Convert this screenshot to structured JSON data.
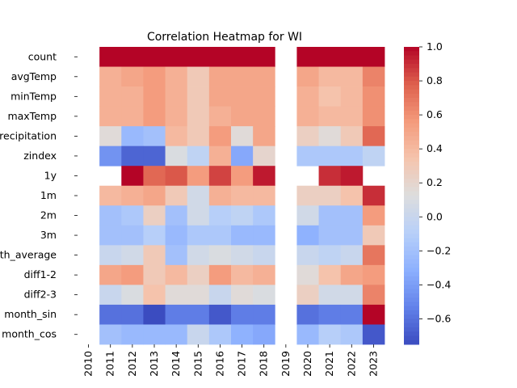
{
  "chart_data": {
    "type": "heatmap",
    "title": "Correlation Heatmap for WI",
    "xlabel": "",
    "ylabel": "",
    "x_labels": [
      "2010",
      "2011",
      "2012",
      "2013",
      "2014",
      "2015",
      "2016",
      "2017",
      "2018",
      "2019",
      "2020",
      "2021",
      "2022",
      "2023"
    ],
    "y_labels": [
      "count",
      "avgTemp",
      "minTemp",
      "maxTemp",
      "precipitation",
      "zindex",
      "1y",
      "1m",
      "2m",
      "3m",
      "month_average",
      "diff1-2",
      "diff2-3",
      "month_sin",
      "month_cos"
    ],
    "values": [
      [
        null,
        1.0,
        1.0,
        1.0,
        1.0,
        1.0,
        1.0,
        1.0,
        1.0,
        null,
        1.0,
        1.0,
        1.0,
        1.0
      ],
      [
        null,
        0.45,
        0.5,
        0.55,
        0.45,
        0.3,
        0.5,
        0.5,
        0.5,
        null,
        0.5,
        0.4,
        0.4,
        0.65
      ],
      [
        null,
        0.45,
        0.45,
        0.55,
        0.45,
        0.3,
        0.5,
        0.5,
        0.5,
        null,
        0.45,
        0.35,
        0.4,
        0.6
      ],
      [
        null,
        0.45,
        0.45,
        0.55,
        0.45,
        0.3,
        0.45,
        0.5,
        0.5,
        null,
        0.45,
        0.4,
        0.4,
        0.6
      ],
      [
        null,
        0.15,
        -0.25,
        -0.2,
        0.4,
        0.3,
        0.55,
        0.15,
        0.5,
        null,
        0.25,
        0.15,
        0.3,
        0.75
      ],
      [
        null,
        -0.45,
        -0.65,
        -0.65,
        0.1,
        -0.05,
        0.45,
        -0.35,
        0.2,
        null,
        -0.15,
        -0.15,
        -0.15,
        -0.05
      ],
      [
        null,
        null,
        1.0,
        0.75,
        0.8,
        0.55,
        0.85,
        0.55,
        0.95,
        null,
        null,
        0.9,
        0.95,
        null
      ],
      [
        null,
        0.4,
        0.45,
        0.5,
        0.3,
        0.05,
        0.45,
        0.4,
        0.4,
        null,
        0.25,
        0.25,
        0.35,
        0.9
      ],
      [
        null,
        -0.2,
        -0.15,
        0.25,
        -0.2,
        0.05,
        -0.1,
        -0.05,
        -0.15,
        null,
        0.05,
        -0.2,
        -0.2,
        0.55
      ],
      [
        null,
        -0.2,
        -0.2,
        -0.1,
        -0.25,
        -0.15,
        -0.15,
        -0.25,
        -0.25,
        null,
        -0.3,
        -0.2,
        -0.2,
        0.3
      ],
      [
        null,
        0.0,
        0.05,
        0.3,
        -0.2,
        0.05,
        0.1,
        0.05,
        0.0,
        null,
        0.0,
        -0.05,
        0.0,
        0.7
      ],
      [
        null,
        0.5,
        0.55,
        0.3,
        0.4,
        0.25,
        0.55,
        0.4,
        0.45,
        null,
        0.15,
        0.35,
        0.5,
        0.55
      ],
      [
        null,
        0.0,
        0.1,
        0.35,
        0.15,
        0.15,
        0.0,
        0.15,
        0.1,
        null,
        0.25,
        0.05,
        0.05,
        0.65
      ],
      [
        null,
        -0.6,
        -0.6,
        -0.75,
        -0.55,
        -0.55,
        -0.7,
        -0.55,
        -0.55,
        null,
        -0.6,
        -0.55,
        -0.55,
        1.0
      ],
      [
        null,
        -0.2,
        -0.25,
        -0.25,
        -0.25,
        0.0,
        -0.15,
        -0.3,
        -0.35,
        null,
        -0.25,
        -0.1,
        -0.15,
        -0.7
      ]
    ],
    "vmin": -0.75,
    "vmax": 1.0,
    "colormap": "coolwarm",
    "colorbar": {
      "ticks": [
        -0.6,
        -0.4,
        -0.2,
        0.0,
        0.2,
        0.4,
        0.6,
        0.8,
        1.0
      ],
      "tick_labels": [
        "−0.6",
        "−0.4",
        "−0.2",
        "0.0",
        "0.2",
        "0.4",
        "0.6",
        "0.8",
        "1.0"
      ]
    }
  }
}
